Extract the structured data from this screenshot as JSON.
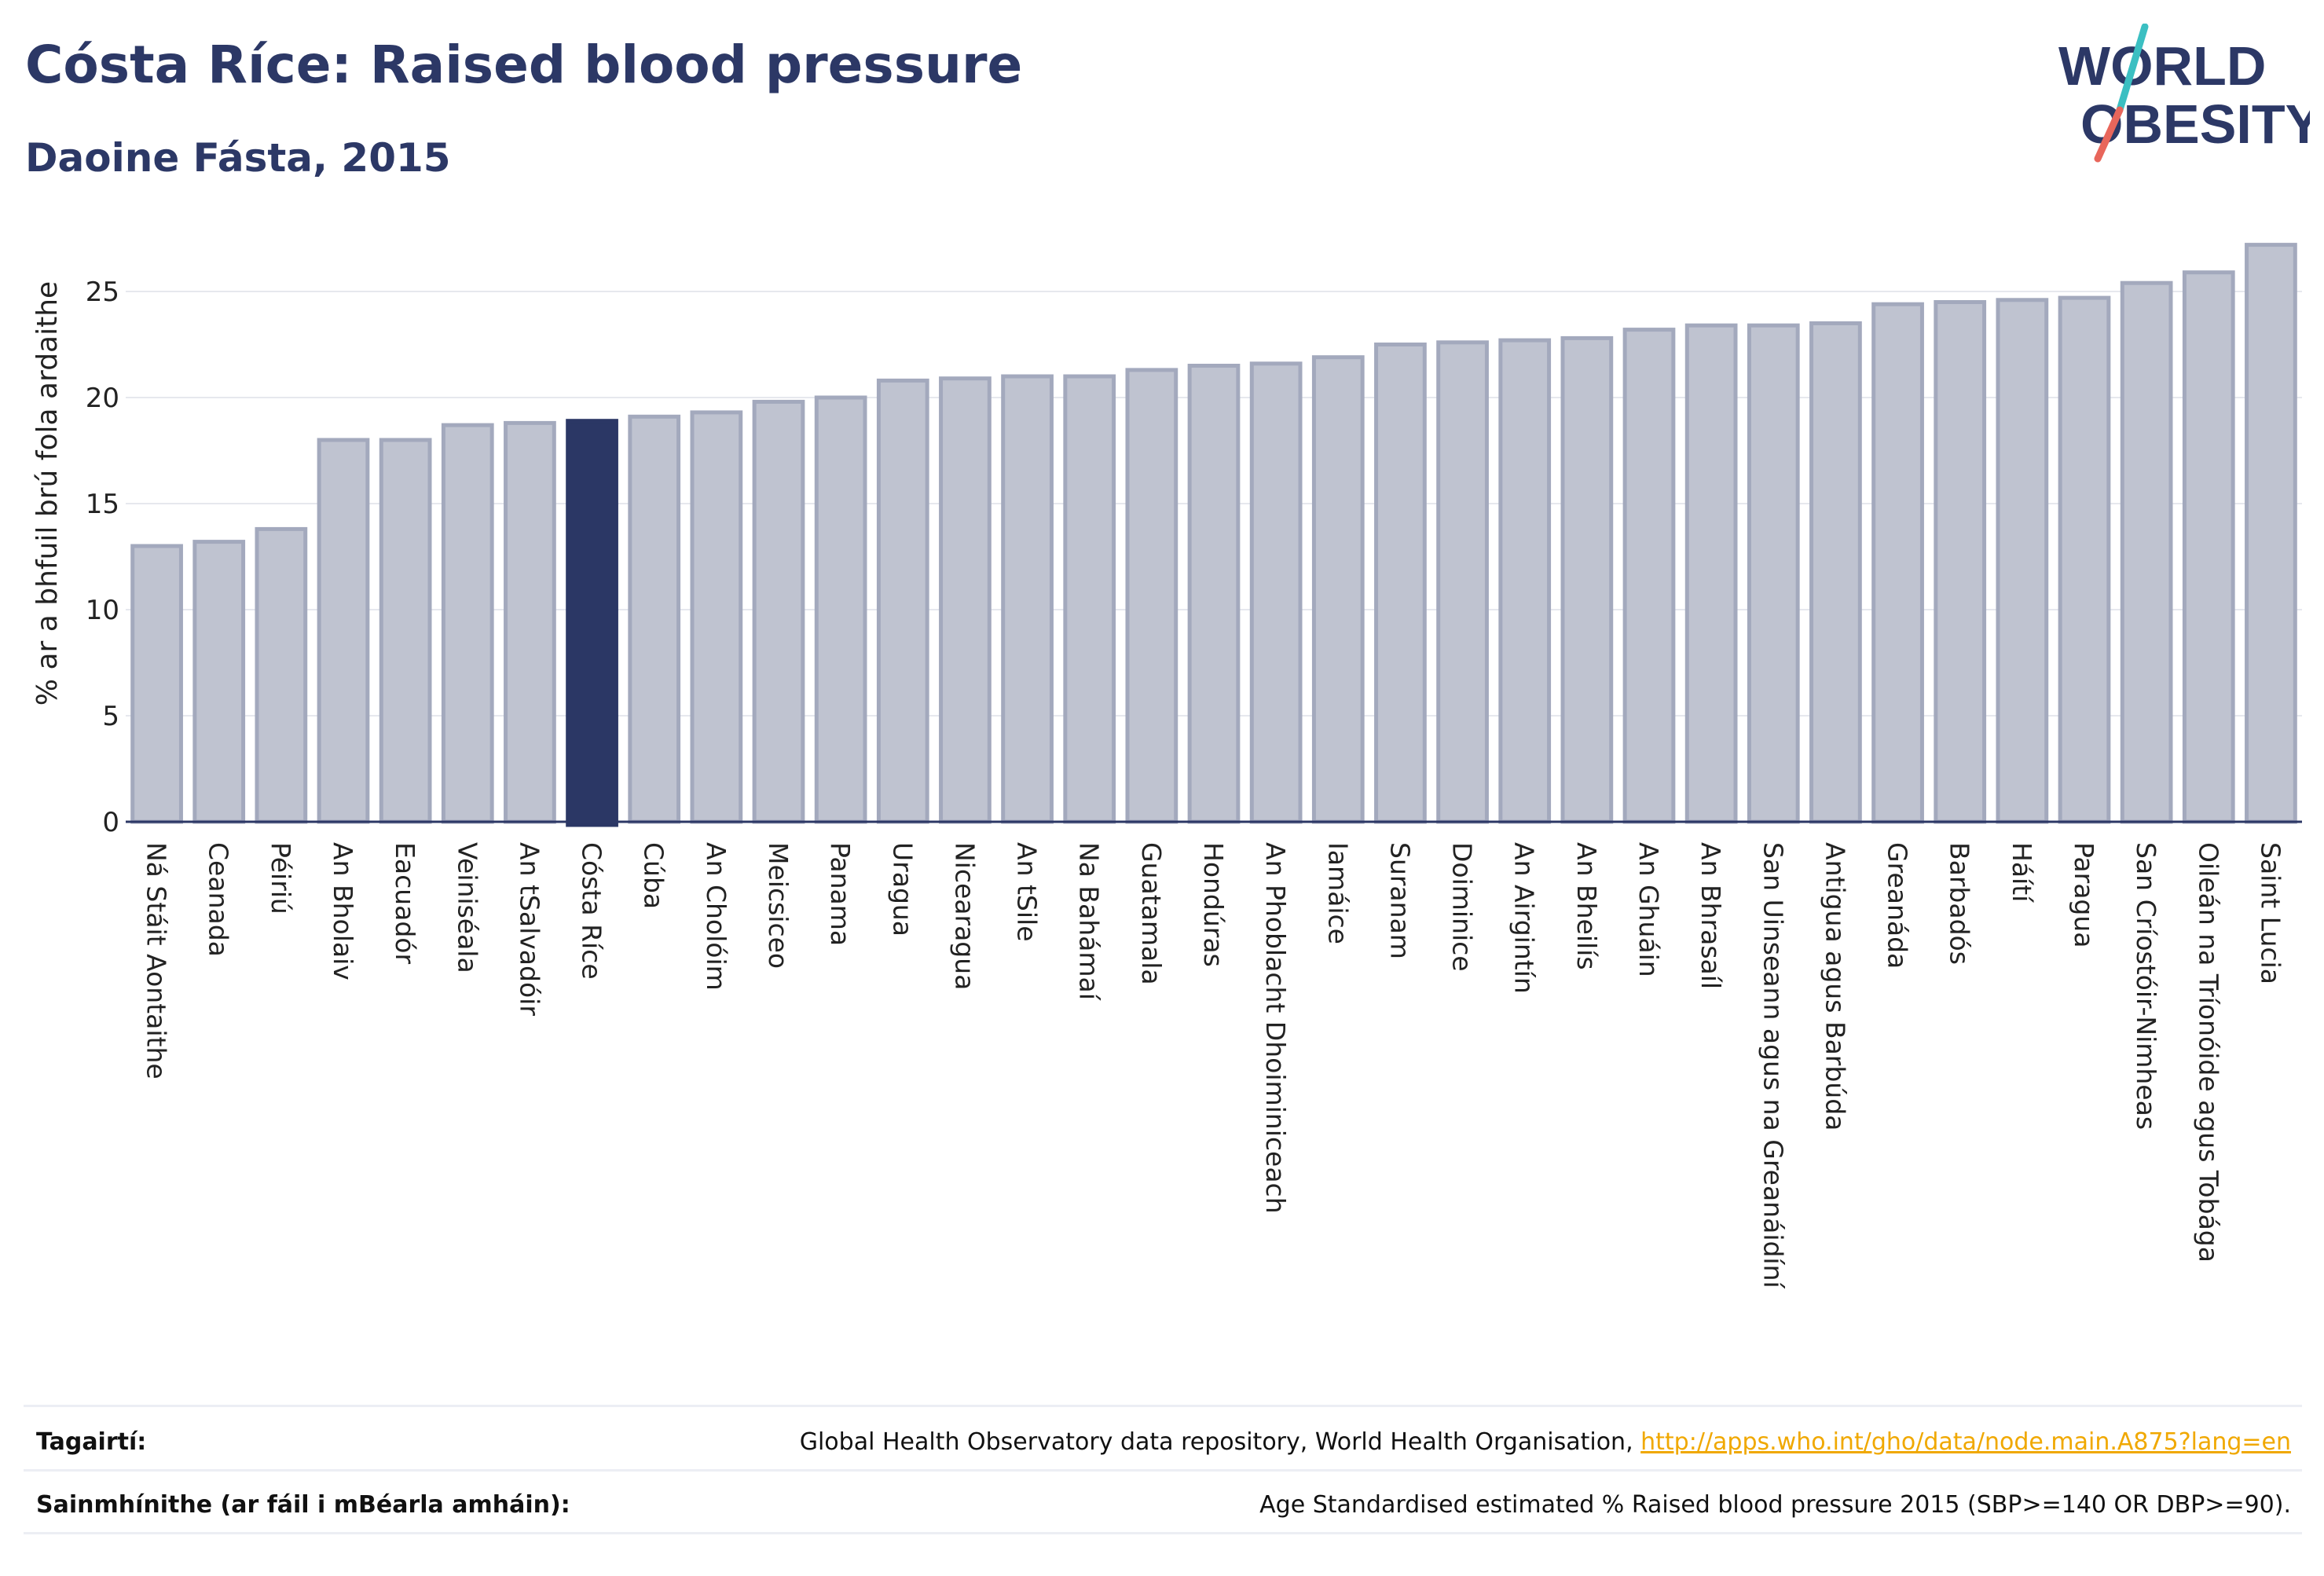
{
  "header": {
    "title": "Cósta Ríce: Raised blood pressure",
    "subtitle": "Daoine Fásta, 2015"
  },
  "logo": {
    "line1": "WORLD",
    "line2": "OBESITY"
  },
  "colors": {
    "highlight": "#2b3765",
    "bar_fill": "#bfc3d0",
    "bar_stroke": "#a3a9bd",
    "brand_navy": "#2c3866",
    "logo_teal": "#3bbfc2",
    "logo_coral": "#e8665b",
    "link": "#f0a800"
  },
  "chart_data": {
    "type": "bar",
    "ylabel": "% ar a bhfuil brú fola ardaithe",
    "ylim": [
      0,
      28
    ],
    "yticks": [
      0,
      5,
      10,
      15,
      20,
      25
    ],
    "grid": true,
    "highlight": "Cósta Ríce",
    "categories": [
      "Ná Stáit Aontaithe",
      "Ceanada",
      "Péiriú",
      "An Bholaiv",
      "Eacuadór",
      "Veiniséala",
      "An tSalvadóir",
      "Cósta Ríce",
      "Cúba",
      "An Cholóim",
      "Meicsiceo",
      "Panama",
      "Uragua",
      "Nicearagua",
      "An tSile",
      "Na Bahámaí",
      "Guatamala",
      "Hondúras",
      "An Phoblacht Dhoiminiceach",
      "Iamáice",
      "Suranam",
      "Doiminice",
      "An Airgintín",
      "An Bheilís",
      "An Ghuáin",
      "An Bhrasaíl",
      "San Uinseann agus na Greanáidíní",
      "Antigua agus Barbúda",
      "Greanáda",
      "Barbadós",
      "Háítí",
      "Paragua",
      "San Críostóir-Nimheas",
      "Oileán na Tríonóide agus Tobága",
      "Saint Lucia"
    ],
    "values": [
      13.0,
      13.2,
      13.8,
      18.0,
      18.0,
      18.7,
      18.8,
      18.9,
      19.1,
      19.3,
      19.8,
      20.0,
      20.8,
      20.9,
      21.0,
      21.0,
      21.3,
      21.5,
      21.6,
      21.9,
      22.5,
      22.6,
      22.7,
      22.8,
      23.2,
      23.4,
      23.4,
      23.5,
      24.4,
      24.5,
      24.6,
      24.7,
      25.4,
      25.9,
      27.2
    ]
  },
  "footer": {
    "references_label": "Tagairtí:",
    "references_text": "Global Health Observatory data repository, World Health Organisation, ",
    "references_link": "http://apps.who.int/gho/data/node.main.A875?lang=en",
    "definitions_label": "Sainmhínithe (ar fáil i mBéarla amháin):",
    "definitions_text": "Age Standardised estimated % Raised blood pressure 2015 (SBP>=140 OR DBP>=90)."
  }
}
